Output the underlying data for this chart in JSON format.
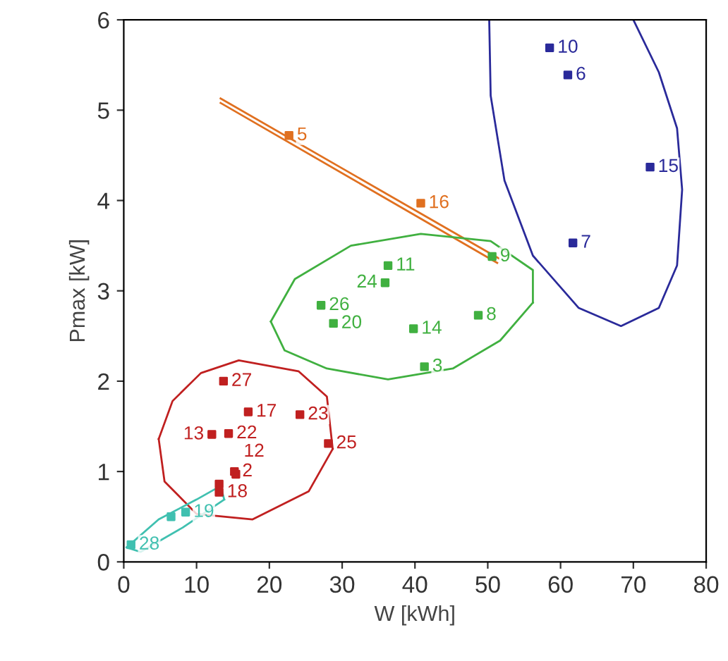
{
  "chart_data": {
    "type": "scatter",
    "xlabel": "W [kWh]",
    "ylabel": "Pmax [kW]",
    "xlim": [
      0,
      80
    ],
    "ylim": [
      0,
      6
    ],
    "xticks": [
      0,
      10,
      20,
      30,
      40,
      50,
      60,
      70,
      80
    ],
    "yticks": [
      0,
      1,
      2,
      3,
      4,
      5,
      6
    ],
    "grid": false,
    "marker": "square",
    "series": [
      {
        "color": "#2a2a9a",
        "x": [
          58.5,
          61.0,
          72.3,
          61.7
        ],
        "values": [
          5.69,
          5.39,
          4.37,
          3.53
        ]
      },
      {
        "color": "#e07020",
        "x": [
          22.7,
          40.8
        ],
        "values": [
          4.72,
          3.97
        ]
      },
      {
        "color": "#40b040",
        "x": [
          36.3,
          35.9,
          27.1,
          28.8,
          39.8,
          48.7,
          41.3,
          50.6
        ],
        "values": [
          3.28,
          3.09,
          2.84,
          2.64,
          2.58,
          2.73,
          2.16,
          3.38
        ]
      },
      {
        "color": "#c02020",
        "x": [
          13.7,
          17.1,
          24.2,
          12.1,
          14.4,
          28.1,
          15.2,
          15.4,
          13.1,
          13.1
        ],
        "values": [
          2.0,
          1.66,
          1.63,
          1.41,
          1.42,
          1.31,
          1.0,
          0.97,
          0.86,
          0.77
        ]
      },
      {
        "color": "#40c0b0",
        "x": [
          1.0,
          6.5,
          8.5
        ],
        "values": [
          0.19,
          0.5,
          0.55
        ]
      },
      {
        "type": "line",
        "marker": "none",
        "color": "#2a2a9a",
        "x": [
          50.2,
          50.4,
          52.3,
          56.2,
          62.5,
          68.3,
          73.5,
          76.0,
          76.7,
          76.0,
          73.5,
          70.0
        ],
        "values": [
          6.0,
          5.16,
          4.22,
          3.39,
          2.81,
          2.61,
          2.81,
          3.28,
          4.12,
          4.8,
          5.42,
          6.0
        ]
      },
      {
        "type": "line",
        "marker": "none",
        "color": "#e07020",
        "x": [
          13.3,
          51.5
        ],
        "values": [
          5.13,
          3.36
        ]
      },
      {
        "type": "line",
        "marker": "none",
        "color": "#e07020",
        "x": [
          13.3,
          51.3
        ],
        "values": [
          5.08,
          3.31
        ]
      },
      {
        "type": "line",
        "marker": "none",
        "color": "#40b040",
        "x": [
          20.2,
          23.5,
          31.2,
          40.8,
          50.4,
          56.2,
          56.2
        ],
        "values": [
          2.66,
          3.13,
          3.5,
          3.63,
          3.55,
          3.23,
          2.87
        ]
      },
      {
        "type": "line",
        "marker": "none",
        "color": "#40b040",
        "x": [
          20.2,
          22.1,
          27.9,
          36.3,
          45.2,
          51.7,
          56.2
        ],
        "values": [
          2.66,
          2.34,
          2.14,
          2.02,
          2.14,
          2.45,
          2.87
        ]
      },
      {
        "type": "line",
        "marker": "none",
        "color": "#c02020",
        "x": [
          4.8,
          6.7,
          10.6,
          15.8,
          24.0,
          27.9,
          28.7
        ],
        "values": [
          1.36,
          1.78,
          2.09,
          2.23,
          2.11,
          1.83,
          1.25
        ]
      },
      {
        "type": "line",
        "marker": "none",
        "color": "#c02020",
        "x": [
          4.8,
          5.6,
          10.0,
          17.7,
          25.4,
          28.7
        ],
        "values": [
          1.36,
          0.89,
          0.53,
          0.47,
          0.78,
          1.25
        ]
      },
      {
        "type": "line",
        "marker": "none",
        "color": "#40c0b0",
        "x": [
          0.4,
          4.8,
          10.0,
          13.3,
          13.8
        ],
        "values": [
          0.16,
          0.47,
          0.69,
          0.84,
          0.69
        ]
      },
      {
        "type": "line",
        "marker": "none",
        "color": "#40c0b0",
        "x": [
          0.4,
          2.3,
          8.1,
          13.8
        ],
        "values": [
          0.16,
          0.11,
          0.38,
          0.69
        ]
      }
    ],
    "annotations": [
      {
        "text": "10",
        "x": 58.5,
        "y": 5.69
      },
      {
        "text": "6",
        "x": 61.0,
        "y": 5.39
      },
      {
        "text": "15",
        "x": 72.3,
        "y": 4.37
      },
      {
        "text": "7",
        "x": 61.7,
        "y": 3.53
      },
      {
        "text": "5",
        "x": 22.7,
        "y": 4.72
      },
      {
        "text": "16",
        "x": 40.8,
        "y": 3.97
      },
      {
        "text": "11",
        "x": 36.3,
        "y": 3.28
      },
      {
        "text": "24",
        "x": 35.9,
        "y": 3.09
      },
      {
        "text": "26",
        "x": 27.1,
        "y": 2.84
      },
      {
        "text": "20",
        "x": 28.8,
        "y": 2.64
      },
      {
        "text": "14",
        "x": 39.8,
        "y": 2.58
      },
      {
        "text": "8",
        "x": 48.7,
        "y": 2.73
      },
      {
        "text": "3",
        "x": 41.3,
        "y": 2.16
      },
      {
        "text": "9",
        "x": 50.6,
        "y": 3.38
      },
      {
        "text": "27",
        "x": 13.7,
        "y": 2.0
      },
      {
        "text": "17",
        "x": 17.1,
        "y": 1.66
      },
      {
        "text": "23",
        "x": 24.2,
        "y": 1.63
      },
      {
        "text": "13",
        "x": 12.1,
        "y": 1.41
      },
      {
        "text": "22",
        "x": 14.4,
        "y": 1.42
      },
      {
        "text": "25",
        "x": 28.1,
        "y": 1.31
      },
      {
        "text": "2",
        "x": 15.2,
        "y": 1.0
      },
      {
        "text": "12",
        "x": 15.4,
        "y": 0.97
      },
      {
        "text": "18",
        "x": 13.1,
        "y": 0.77
      },
      {
        "text": "28",
        "x": 1.0,
        "y": 0.19
      },
      {
        "text": "19",
        "x": 8.5,
        "y": 0.55
      }
    ]
  }
}
